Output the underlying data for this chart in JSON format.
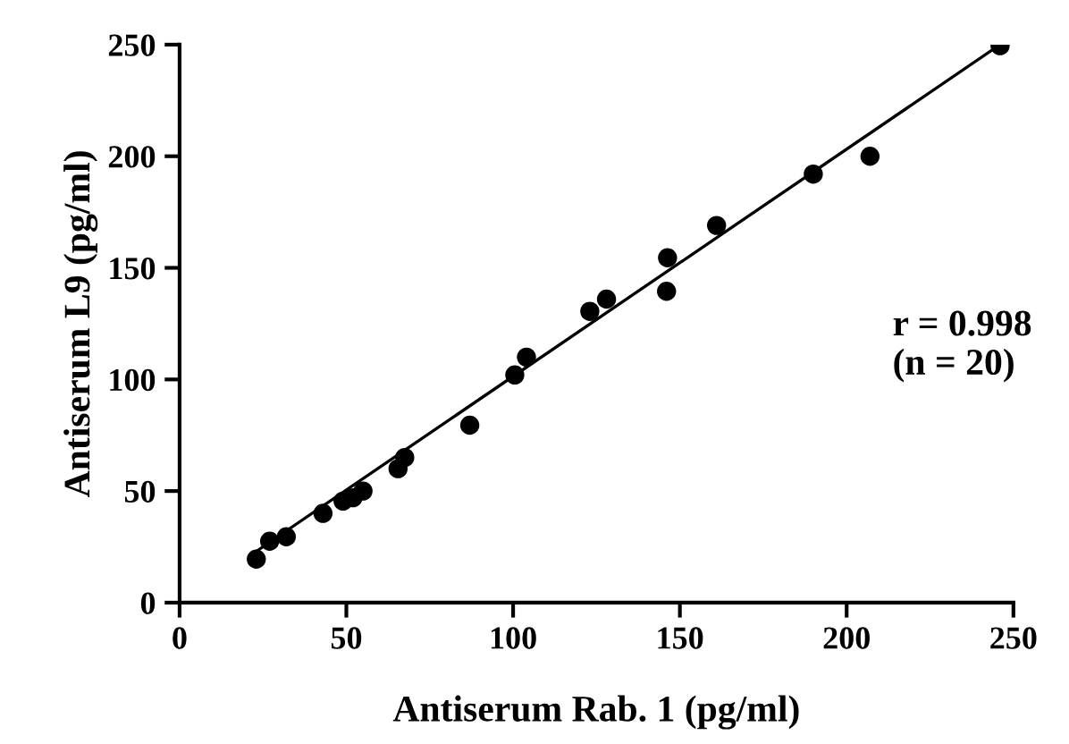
{
  "chart_data": {
    "type": "scatter",
    "xlabel": "Antiserum Rab. 1 (pg/ml)",
    "ylabel": "Antiserum L9 (pg/ml)",
    "annotations": [
      "r = 0.998\n(n = 20)"
    ],
    "xlim": [
      0,
      250
    ],
    "ylim": [
      0,
      250
    ],
    "xticks": [
      0,
      50,
      100,
      150,
      200,
      250
    ],
    "yticks": [
      0,
      50,
      100,
      150,
      200,
      250
    ],
    "grid": false,
    "legend": false,
    "marker": "circle",
    "series": [
      {
        "color": "#000000",
        "x": [
          23,
          27,
          32,
          43,
          49,
          52,
          55,
          65.5,
          67.5,
          87,
          100.5,
          104,
          123,
          128,
          146,
          146.3,
          161,
          190,
          207,
          246
        ],
        "values": [
          19.5,
          27.5,
          29.5,
          40,
          45.5,
          47,
          50,
          60,
          65,
          79.5,
          102,
          110,
          130.5,
          136,
          139.5,
          154.5,
          169,
          192,
          200,
          249.5
        ]
      },
      {
        "type": "line",
        "color": "#000000",
        "line_style": "solid",
        "marker": "none",
        "x": [
          23,
          246
        ],
        "values": [
          23,
          250
        ]
      }
    ]
  }
}
